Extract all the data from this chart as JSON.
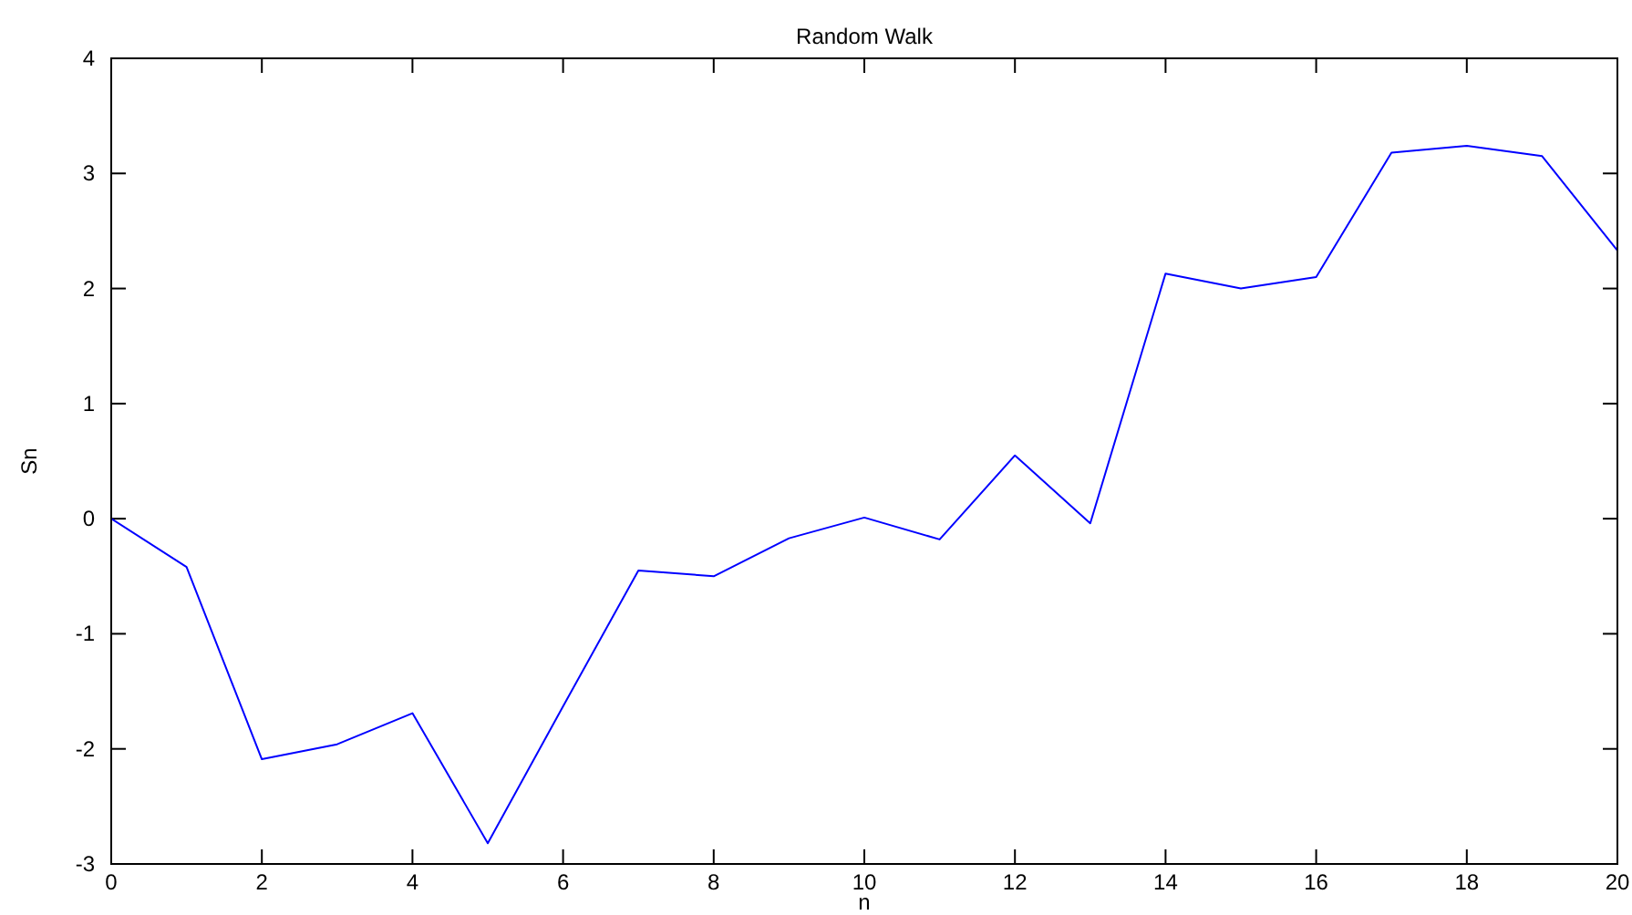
{
  "chart_data": {
    "type": "line",
    "title": "Random Walk",
    "xlabel": "n",
    "ylabel": "Sn",
    "x": [
      0,
      1,
      2,
      3,
      4,
      5,
      6,
      7,
      8,
      9,
      10,
      11,
      12,
      13,
      14,
      15,
      16,
      17,
      18,
      19,
      20
    ],
    "series": [
      {
        "color": "#0000ff",
        "values": [
          0,
          -0.42,
          -2.09,
          -1.96,
          -1.69,
          -2.82,
          -1.63,
          -0.45,
          -0.5,
          -0.17,
          0.01,
          -0.18,
          0.55,
          -0.04,
          2.13,
          2.0,
          2.1,
          3.18,
          3.24,
          3.15,
          2.33
        ]
      }
    ],
    "xlim": [
      0,
      20
    ],
    "xticks": [
      0,
      2,
      4,
      6,
      8,
      10,
      12,
      14,
      16,
      18,
      20
    ],
    "ylim": [
      -3,
      4
    ],
    "yticks": [
      -3,
      -2,
      -1,
      0,
      1,
      2,
      3,
      4
    ],
    "grid": false,
    "marker": "none",
    "line_style": "solid"
  }
}
